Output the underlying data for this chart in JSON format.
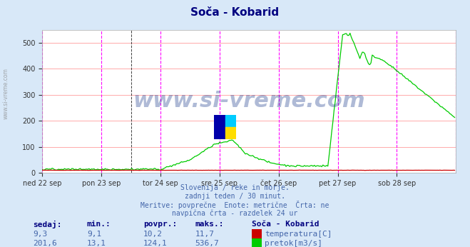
{
  "title": "Soča - Kobarid",
  "bg_color": "#d8e8f8",
  "plot_bg_color": "#ffffff",
  "title_color": "#000080",
  "grid_color": "#ffaaaa",
  "vline_color_magenta": "#ff00ff",
  "vline_color_black": "#404040",
  "text_color": "#4466aa",
  "label_color": "#000080",
  "xlim": [
    0,
    336
  ],
  "ylim": [
    0,
    550
  ],
  "yticks": [
    0,
    100,
    200,
    300,
    400,
    500
  ],
  "xtick_labels": [
    "ned 22 sep",
    "pon 23 sep",
    "tor 24 sep",
    "sre 25 sep",
    "čet 26 sep",
    "pet 27 sep",
    "sob 28 sep"
  ],
  "xtick_positions": [
    0,
    48,
    96,
    144,
    192,
    240,
    288
  ],
  "vlines_magenta": [
    0,
    48,
    96,
    144,
    192,
    240,
    288,
    336
  ],
  "vline_black": 72,
  "subtitle_lines": [
    "Slovenija / reke in morje.",
    "zadnji teden / 30 minut.",
    "Meritve: povprečne  Enote: metrične  Črta: ne",
    "navpična črta - razdelek 24 ur"
  ],
  "table_header": [
    "sedaj:",
    "min.:",
    "povpr.:",
    "maks.:",
    "Soča - Kobarid"
  ],
  "table_row1": [
    "9,3",
    "9,1",
    "10,2",
    "11,7",
    "temperatura[C]"
  ],
  "table_row2": [
    "201,6",
    "13,1",
    "124,1",
    "536,7",
    "pretok[m3/s]"
  ],
  "temp_color": "#cc0000",
  "flow_color": "#00cc00",
  "watermark": "www.si-vreme.com",
  "watermark_color": "#1a3a8a",
  "side_watermark_color": "#888888"
}
